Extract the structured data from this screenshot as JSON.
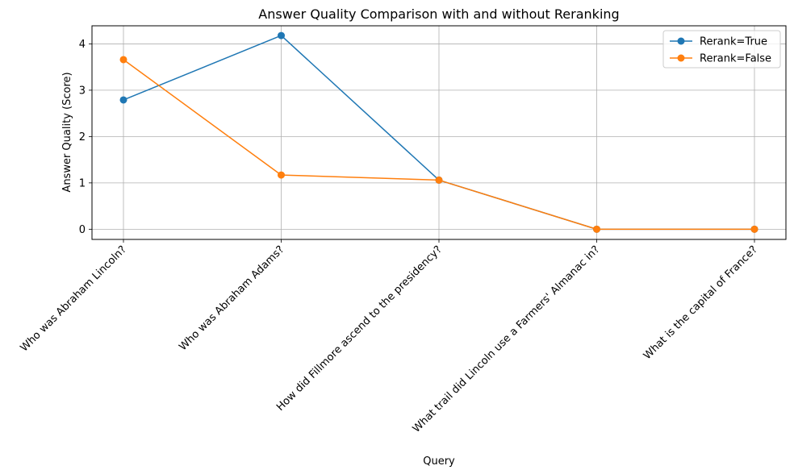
{
  "chart_data": {
    "type": "line",
    "title": "Answer Quality Comparison with and without Reranking",
    "xlabel": "Query",
    "ylabel": "Answer Quality (Score)",
    "categories": [
      "Who was Abraham Lincoln?",
      "Who was Abraham Adams?",
      "How did Fillmore ascend to the presidency?",
      "What trail did Lincoln use a Farmers' Almanac in?",
      "What is the capital of France?"
    ],
    "series": [
      {
        "name": "Rerank=True",
        "values": [
          2.79,
          4.18,
          1.06,
          0,
          0
        ],
        "color": "#1f77b4"
      },
      {
        "name": "Rerank=False",
        "values": [
          3.66,
          1.17,
          1.06,
          0,
          0
        ],
        "color": "#ff7f0e"
      }
    ],
    "ylim": [
      -0.22,
      4.39
    ],
    "yticks": [
      0,
      1,
      2,
      3,
      4
    ],
    "grid": true,
    "legend_position": "top-right"
  }
}
